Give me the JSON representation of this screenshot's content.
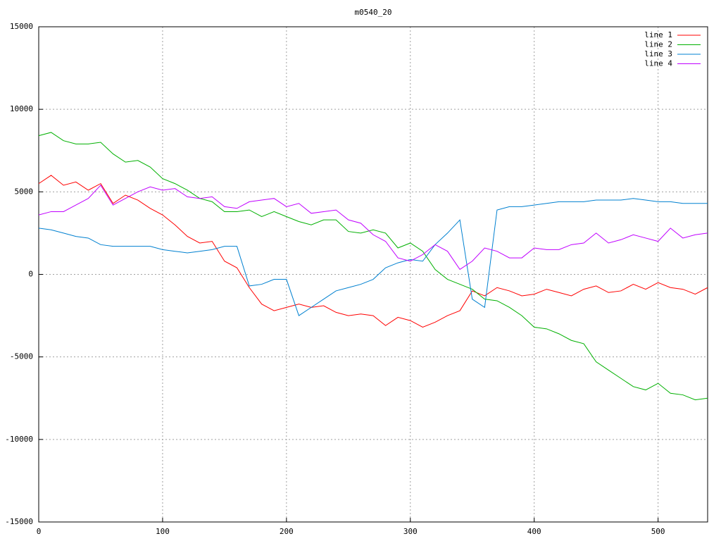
{
  "chart_data": {
    "type": "line",
    "title": "m0540_20",
    "x": [
      0,
      10,
      20,
      30,
      40,
      50,
      60,
      70,
      80,
      90,
      100,
      110,
      120,
      130,
      140,
      150,
      160,
      170,
      180,
      190,
      200,
      210,
      220,
      230,
      240,
      250,
      260,
      270,
      280,
      290,
      300,
      310,
      320,
      330,
      340,
      350,
      360,
      370,
      380,
      390,
      400,
      410,
      420,
      430,
      440,
      450,
      460,
      470,
      480,
      490,
      500,
      510,
      520,
      530,
      540
    ],
    "series": [
      {
        "name": "line 1",
        "color": "#ff0000",
        "values": [
          5500,
          6000,
          5400,
          5600,
          5100,
          5500,
          4300,
          4800,
          4500,
          4000,
          3600,
          3000,
          2300,
          1900,
          2000,
          800,
          400,
          -800,
          -1800,
          -2200,
          -2000,
          -1800,
          -2000,
          -1900,
          -2300,
          -2500,
          -2400,
          -2500,
          -3100,
          -2600,
          -2800,
          -3200,
          -2900,
          -2500,
          -2200,
          -1000,
          -1300,
          -800,
          -1000,
          -1300,
          -1200,
          -900,
          -1100,
          -1300,
          -900,
          -700,
          -1100,
          -1000,
          -600,
          -900,
          -500,
          -800,
          -900,
          -1200,
          -800
        ]
      },
      {
        "name": "line 2",
        "color": "#00b000",
        "values": [
          8400,
          8600,
          8100,
          7900,
          7900,
          8000,
          7300,
          6800,
          6900,
          6500,
          5800,
          5500,
          5100,
          4600,
          4400,
          3800,
          3800,
          3900,
          3500,
          3800,
          3500,
          3200,
          3000,
          3300,
          3300,
          2600,
          2500,
          2700,
          2500,
          1600,
          1900,
          1400,
          300,
          -300,
          -600,
          -900,
          -1500,
          -1600,
          -2000,
          -2500,
          -3200,
          -3300,
          -3600,
          -4000,
          -4200,
          -5300,
          -5800,
          -6300,
          -6800,
          -7000,
          -6600,
          -7200,
          -7300,
          -7600,
          -7500
        ]
      },
      {
        "name": "line 3",
        "color": "#0080d0",
        "values": [
          2800,
          2700,
          2500,
          2300,
          2200,
          1800,
          1700,
          1700,
          1700,
          1700,
          1500,
          1400,
          1300,
          1400,
          1500,
          1700,
          1700,
          -700,
          -600,
          -300,
          -300,
          -2500,
          -2000,
          -1500,
          -1000,
          -800,
          -600,
          -300,
          400,
          700,
          900,
          800,
          1800,
          2500,
          3300,
          -1500,
          -2000,
          3900,
          4100,
          4100,
          4200,
          4300,
          4400,
          4400,
          4400,
          4500,
          4500,
          4500,
          4600,
          4500,
          4400,
          4400,
          4300,
          4300,
          4300
        ]
      },
      {
        "name": "line 4",
        "color": "#c000ff",
        "values": [
          3600,
          3800,
          3800,
          4200,
          4600,
          5400,
          4200,
          4600,
          5000,
          5300,
          5100,
          5200,
          4700,
          4600,
          4700,
          4100,
          4000,
          4400,
          4500,
          4600,
          4100,
          4300,
          3700,
          3800,
          3900,
          3300,
          3100,
          2400,
          2000,
          1000,
          800,
          1200,
          1800,
          1400,
          300,
          800,
          1600,
          1400,
          1000,
          1000,
          1600,
          1500,
          1500,
          1800,
          1900,
          2500,
          1900,
          2100,
          2400,
          2200,
          2000,
          2800,
          2200,
          2400,
          2500
        ]
      }
    ],
    "xlim": [
      0,
      540
    ],
    "xticks": [
      0,
      100,
      200,
      300,
      400,
      500
    ],
    "ylim": [
      -15000,
      15000
    ],
    "yticks": [
      -15000,
      -10000,
      -5000,
      0,
      5000,
      10000,
      15000
    ],
    "grid": true,
    "legend": "top-right"
  }
}
